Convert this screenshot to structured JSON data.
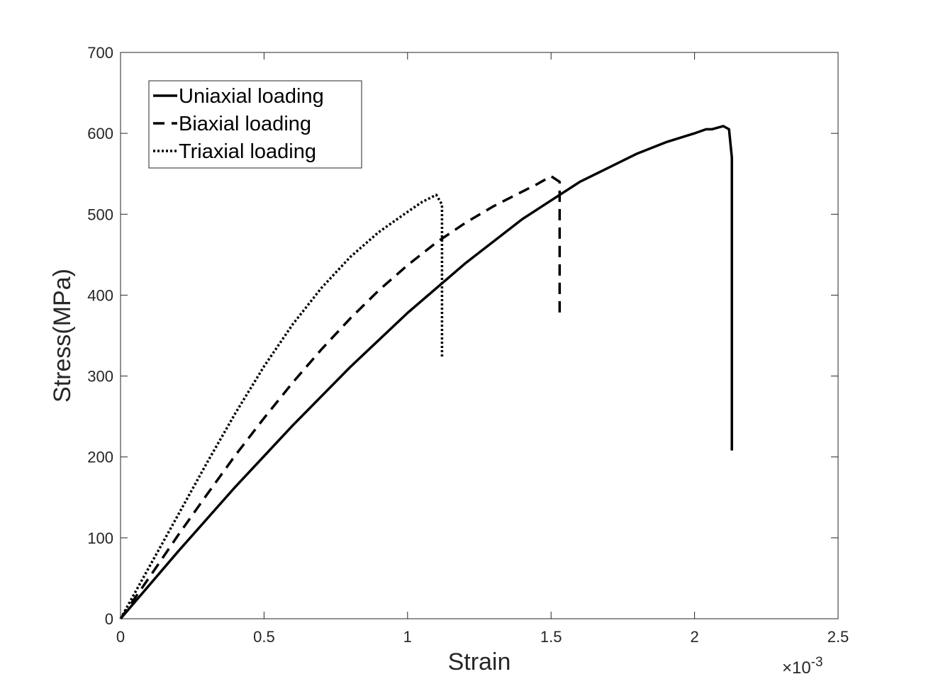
{
  "chart_data": {
    "type": "line",
    "title": "",
    "xlabel": "Strain",
    "ylabel": "Stress(MPa)",
    "x_multiplier": "×10",
    "x_exponent": "-3",
    "xlim": [
      0,
      0.0025
    ],
    "ylim": [
      0,
      700
    ],
    "xticks": [
      0,
      0.0005,
      0.001,
      0.0015,
      0.002,
      0.0025
    ],
    "xtick_labels": [
      "0",
      "0.5",
      "1",
      "1.5",
      "2",
      "2.5"
    ],
    "yticks": [
      0,
      100,
      200,
      300,
      400,
      500,
      600,
      700
    ],
    "ytick_labels": [
      "0",
      "100",
      "200",
      "300",
      "400",
      "500",
      "600",
      "700"
    ],
    "grid": false,
    "legend_position": "top-left",
    "series": [
      {
        "name": "Uniaxial loading",
        "style": "solid",
        "color": "#000000",
        "x": [
          0,
          0.0002,
          0.0004,
          0.0006,
          0.0008,
          0.001,
          0.0012,
          0.0014,
          0.0016,
          0.0018,
          0.0019,
          0.002,
          0.00204,
          0.00206,
          0.0021,
          0.00212,
          0.00213,
          0.00213,
          0.00213
        ],
        "y": [
          0,
          83,
          163,
          239,
          311,
          378,
          439,
          494,
          540,
          575,
          589,
          600,
          605,
          605,
          609,
          605,
          570,
          400,
          208
        ]
      },
      {
        "name": "Biaxial loading",
        "style": "dashed",
        "color": "#000000",
        "x": [
          0,
          0.0001,
          0.0002,
          0.0003,
          0.0004,
          0.0005,
          0.0006,
          0.0007,
          0.0008,
          0.0009,
          0.001,
          0.0011,
          0.0012,
          0.0013,
          0.0014,
          0.00145,
          0.0015,
          0.00153,
          0.00153
        ],
        "y": [
          0,
          51,
          103,
          153,
          202,
          248,
          292,
          333,
          371,
          406,
          437,
          465,
          489,
          510,
          528,
          537,
          547,
          540,
          370
        ]
      },
      {
        "name": "Triaxial loading",
        "style": "dotted",
        "color": "#000000",
        "x": [
          0,
          0.0001,
          0.0002,
          0.0003,
          0.0004,
          0.0005,
          0.0006,
          0.0007,
          0.0008,
          0.0009,
          0.001,
          0.00105,
          0.0011,
          0.00112,
          0.00112,
          0.00112
        ],
        "y": [
          0,
          64,
          128,
          192,
          254,
          312,
          364,
          409,
          447,
          478,
          503,
          515,
          524,
          512,
          420,
          322
        ]
      }
    ]
  }
}
